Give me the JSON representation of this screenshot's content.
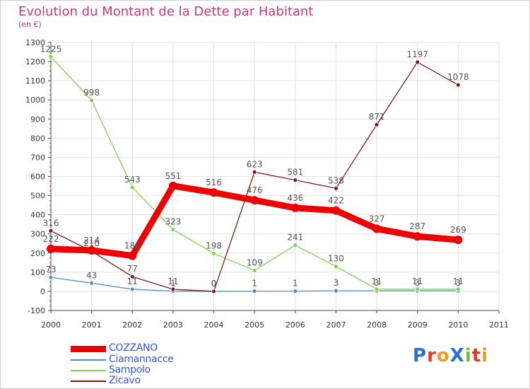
{
  "header": {
    "title": "Evolution du Montant de la Dette par Habitant",
    "subtitle": "(en €)"
  },
  "colors": {
    "title": "#c8387a",
    "legend_text": "#3355ee",
    "axis": "#444444",
    "grid": "#e0e0e0"
  },
  "logo": {
    "text": "ProXiti",
    "letters": [
      {
        "ch": "P",
        "color": "#2a6fcf"
      },
      {
        "ch": "r",
        "color": "#e23b2e"
      },
      {
        "ch": "o",
        "color": "#f29a1d"
      },
      {
        "ch": "X",
        "color": "#2a6fcf"
      },
      {
        "ch": "i",
        "color": "#7cb82f"
      },
      {
        "ch": "t",
        "color": "#e23b2e"
      },
      {
        "ch": "i",
        "color": "#f29a1d"
      }
    ]
  },
  "chart_data": {
    "type": "line",
    "title": "Evolution du Montant de la Dette par Habitant",
    "subtitle": "(en €)",
    "x": [
      2000,
      2001,
      2002,
      2003,
      2004,
      2005,
      2006,
      2007,
      2008,
      2009,
      2010
    ],
    "x_ticks": [
      "2000",
      "2001",
      "2002",
      "2003",
      "2004",
      "2005",
      "2006",
      "2007",
      "2008",
      "2009",
      "2010",
      "2011"
    ],
    "xlim": [
      2000,
      2011
    ],
    "ylim": [
      -100,
      1300
    ],
    "y_ticks": [
      "-100",
      "0",
      "100",
      "200",
      "300",
      "400",
      "500",
      "600",
      "700",
      "800",
      "900",
      "1000",
      "1100",
      "1200",
      "1300"
    ],
    "grid": true,
    "legend_position": "bottom-left",
    "series": [
      {
        "name": "COZZANO",
        "color": "#ee0000",
        "emphasis": true,
        "values": [
          222,
          214,
          186,
          551,
          516,
          476,
          436,
          422,
          327,
          287,
          269
        ],
        "labels": [
          "222",
          "214",
          "186",
          "551",
          "516",
          "476",
          "436",
          "422",
          "327",
          "287",
          "269"
        ]
      },
      {
        "name": "Ciamannacce",
        "color": "#4a8fd0",
        "emphasis": false,
        "values": [
          73,
          43,
          11,
          1,
          0,
          1,
          1,
          3,
          3,
          3,
          3
        ],
        "labels": [
          "73",
          "43",
          "11",
          "1",
          "0",
          "1",
          "1",
          "3",
          "3",
          "3",
          "3"
        ]
      },
      {
        "name": "Sampolo",
        "color": "#80d050",
        "emphasis": false,
        "values": [
          1225,
          998,
          543,
          323,
          198,
          109,
          241,
          130,
          11,
          11,
          11
        ],
        "labels": [
          "1225",
          "998",
          "543",
          "323",
          "198",
          "109",
          "241",
          "130",
          "11",
          "11",
          "11"
        ]
      },
      {
        "name": "Zicavo",
        "color": "#7a1c1c",
        "emphasis": false,
        "values": [
          316,
          210,
          77,
          11,
          0,
          623,
          581,
          538,
          871,
          1197,
          1078
        ],
        "labels": [
          "316",
          "210",
          "77",
          "11",
          "0",
          "623",
          "581",
          "538",
          "871",
          "1197",
          "1078"
        ]
      }
    ]
  }
}
